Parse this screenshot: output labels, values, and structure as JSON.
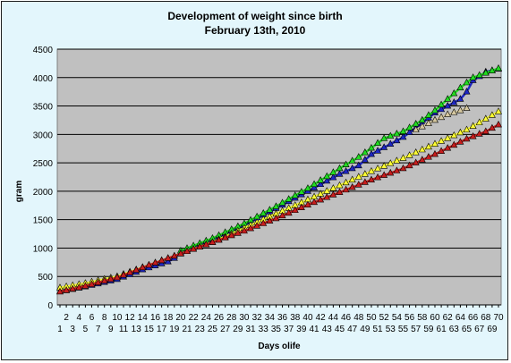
{
  "chart_data": {
    "type": "line",
    "title": "Development of weight since birth",
    "subtitle": "February 13th, 2010",
    "xlabel": "Days olife",
    "ylabel": "gram",
    "ylim": [
      0,
      4500
    ],
    "xlim": [
      1,
      70
    ],
    "yticks": [
      0,
      500,
      1000,
      1500,
      2000,
      2500,
      3000,
      3500,
      4000,
      4500
    ],
    "xticks": [
      1,
      2,
      3,
      4,
      5,
      6,
      7,
      8,
      9,
      10,
      11,
      12,
      13,
      14,
      15,
      16,
      17,
      18,
      19,
      20,
      21,
      22,
      23,
      24,
      25,
      26,
      27,
      28,
      29,
      30,
      31,
      32,
      33,
      34,
      35,
      36,
      37,
      38,
      39,
      40,
      41,
      42,
      43,
      44,
      45,
      46,
      47,
      48,
      49,
      50,
      51,
      52,
      53,
      54,
      55,
      56,
      57,
      58,
      59,
      60,
      61,
      62,
      63,
      64,
      65,
      66,
      67,
      68,
      69,
      70
    ],
    "grid": true,
    "legend": "none",
    "plot_background": "#c0c0c0",
    "series": [
      {
        "color": "#1f27c4",
        "marker": "triangle",
        "x": [
          1,
          5,
          10,
          14,
          18,
          19,
          20,
          25,
          30,
          35,
          40,
          45,
          48,
          50,
          55,
          58,
          60,
          62,
          64,
          65,
          66,
          67,
          68,
          70
        ],
        "y": [
          230,
          320,
          450,
          620,
          760,
          820,
          920,
          1150,
          1400,
          1700,
          2000,
          2300,
          2450,
          2650,
          2950,
          3200,
          3380,
          3500,
          3620,
          3750,
          3950,
          4020,
          4100,
          4150
        ]
      },
      {
        "color": "#22dd22",
        "marker": "triangle",
        "x": [
          20,
          25,
          30,
          35,
          40,
          45,
          48,
          50,
          52,
          55,
          58,
          60,
          62,
          64,
          66,
          68,
          70
        ],
        "y": [
          950,
          1170,
          1430,
          1730,
          2050,
          2400,
          2600,
          2760,
          2930,
          3050,
          3250,
          3420,
          3620,
          3820,
          4000,
          4080,
          4160
        ]
      },
      {
        "color": "#ffff33",
        "marker": "triangle",
        "x": [
          1,
          5,
          10,
          15,
          20,
          25,
          30,
          35,
          40,
          45,
          50,
          55,
          60,
          65,
          70
        ],
        "y": [
          300,
          380,
          500,
          700,
          900,
          1100,
          1350,
          1600,
          1850,
          2100,
          2350,
          2580,
          2830,
          3080,
          3400
        ]
      },
      {
        "color": "#c81e1e",
        "marker": "triangle",
        "x": [
          1,
          5,
          10,
          15,
          20,
          25,
          30,
          35,
          40,
          45,
          50,
          55,
          60,
          65,
          68,
          70
        ],
        "y": [
          230,
          330,
          480,
          700,
          900,
          1100,
          1300,
          1520,
          1760,
          1980,
          2200,
          2400,
          2650,
          2920,
          3050,
          3170
        ]
      },
      {
        "color": "#d6c8a0",
        "marker": "triangle",
        "x": [
          57,
          60,
          62,
          64,
          65
        ],
        "y": [
          3080,
          3250,
          3350,
          3420,
          3460
        ]
      }
    ]
  }
}
